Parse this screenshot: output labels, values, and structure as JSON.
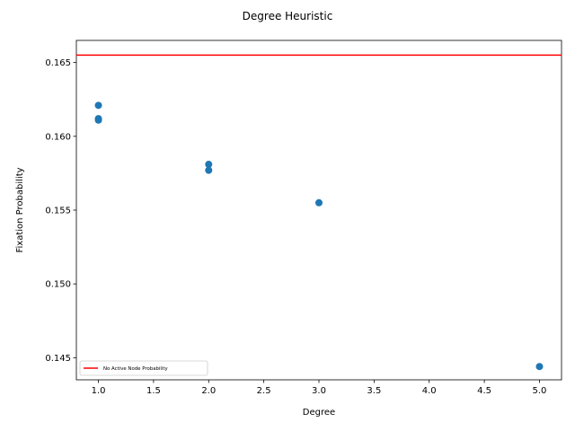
{
  "chart_data": {
    "type": "scatter",
    "title": "Degree Heuristic",
    "xlabel": "Degree",
    "ylabel": "Fixation Probability",
    "xlim": [
      0.8,
      5.2
    ],
    "ylim": [
      0.1435,
      0.1665
    ],
    "xticks": [
      1.0,
      1.5,
      2.0,
      2.5,
      3.0,
      3.5,
      4.0,
      4.5,
      5.0
    ],
    "xtick_labels": [
      "1.0",
      "1.5",
      "2.0",
      "2.5",
      "3.0",
      "3.5",
      "4.0",
      "4.5",
      "5.0"
    ],
    "yticks": [
      0.145,
      0.15,
      0.155,
      0.16,
      0.165
    ],
    "ytick_labels": [
      "0.145",
      "0.150",
      "0.155",
      "0.160",
      "0.165"
    ],
    "grid": false,
    "series": [
      {
        "color": "#1f77b4",
        "points": [
          {
            "x": 1.0,
            "y": 0.1621
          },
          {
            "x": 1.0,
            "y": 0.1612
          },
          {
            "x": 1.0,
            "y": 0.1611
          },
          {
            "x": 2.0,
            "y": 0.1581
          },
          {
            "x": 2.0,
            "y": 0.1577
          },
          {
            "x": 3.0,
            "y": 0.1555
          },
          {
            "x": 5.0,
            "y": 0.1444
          }
        ]
      }
    ],
    "reference_line": {
      "orientation": "horizontal",
      "y": 0.1655,
      "color": "#ff0000",
      "label": "No Active Node Probability"
    },
    "legend": {
      "placement": "lower-left",
      "entries": [
        {
          "label": "No Active Node Probability",
          "color": "#ff0000",
          "marker": "line"
        }
      ]
    }
  }
}
